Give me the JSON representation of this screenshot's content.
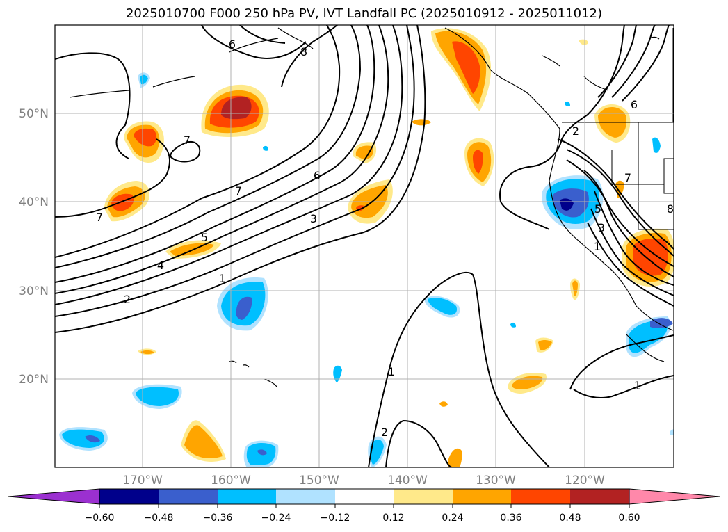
{
  "title": "2025010700 F000 250 hPa PV, IVT Landfall PC (2025010912 - 2025011012)",
  "lat_labels": [
    "50°N",
    "40°N",
    "30°N",
    "20°N"
  ],
  "lon_labels": [
    "170°W",
    "160°W",
    "150°W",
    "140°W",
    "130°W",
    "120°W"
  ],
  "colorbar": {
    "ticks": [
      "−0.60",
      "−0.48",
      "−0.36",
      "−0.24",
      "−0.12",
      "0.12",
      "0.24",
      "0.36",
      "0.48",
      "0.60"
    ],
    "colors": [
      "#9b30d0",
      "#00008b",
      "#3a5fcd",
      "#00bfff",
      "#b0e2ff",
      "#ffffff",
      "#ffe98a",
      "#ffa500",
      "#ff4500",
      "#b22222",
      "#ff88aa"
    ]
  },
  "contour_labels": [
    "6",
    "8",
    "7",
    "7",
    "6",
    "7",
    "3",
    "5",
    "4",
    "1",
    "2",
    "2",
    "7",
    "5",
    "3",
    "1",
    "6",
    "1",
    "2",
    "1",
    "8"
  ],
  "colors": {
    "contour": "#000000",
    "grid": "#b0b0b0",
    "axis_label": "#808080"
  }
}
